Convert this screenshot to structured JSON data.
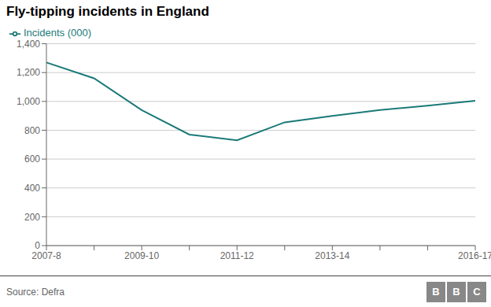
{
  "chart_data": {
    "type": "line",
    "title": "Fly-tipping incidents in England",
    "categories": [
      "2007-8",
      null,
      "2009-10",
      null,
      "2011-12",
      null,
      "2013-14",
      null,
      null,
      "2016-17"
    ],
    "series": [
      {
        "name": "Incidents (000)",
        "color": "#1a7a78",
        "values": [
          1270,
          1160,
          940,
          770,
          730,
          855,
          900,
          940,
          970,
          1005
        ]
      }
    ],
    "ylim": [
      0,
      1400
    ],
    "yticks": [
      0,
      200,
      400,
      600,
      800,
      {
        "value": 1000,
        "label": "1,000"
      },
      {
        "value": 1200,
        "label": "1,200"
      },
      {
        "value": 1400,
        "label": "1,400"
      }
    ],
    "grid": true,
    "legend": "upper left",
    "annotations": [
      "Source: Defra",
      "BBC"
    ]
  }
}
